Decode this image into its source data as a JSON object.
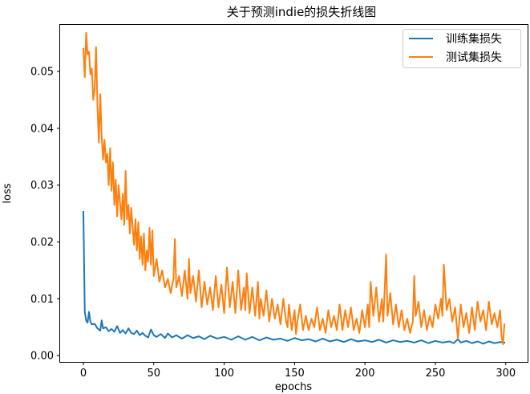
{
  "chart_data": {
    "type": "line",
    "title": "关于预测indie的损失折线图",
    "xlabel": "epochs",
    "ylabel": "loss",
    "xlim": [
      -16.5,
      315.5
    ],
    "ylim": [
      -0.0011,
      0.0582
    ],
    "xticks": [
      0,
      50,
      100,
      150,
      200,
      250,
      300
    ],
    "xtick_labels": [
      "0",
      "50",
      "100",
      "150",
      "200",
      "250",
      "300"
    ],
    "yticks": [
      0.0,
      0.01,
      0.02,
      0.03,
      0.04,
      0.05
    ],
    "ytick_labels": [
      "0.00",
      "0.01",
      "0.02",
      "0.03",
      "0.04",
      "0.05"
    ],
    "grid": false,
    "legend_position": "top-right",
    "series": [
      {
        "name": "训练集损失",
        "color": "#1f77b4",
        "points": [
          [
            0,
            0.0253
          ],
          [
            1,
            0.0077
          ],
          [
            2,
            0.0062
          ],
          [
            3,
            0.0058
          ],
          [
            4,
            0.0077
          ],
          [
            5,
            0.006
          ],
          [
            6,
            0.0055
          ],
          [
            8,
            0.0056
          ],
          [
            10,
            0.0048
          ],
          [
            12,
            0.0044
          ],
          [
            13,
            0.0062
          ],
          [
            14,
            0.0048
          ],
          [
            16,
            0.005
          ],
          [
            18,
            0.0043
          ],
          [
            20,
            0.0047
          ],
          [
            22,
            0.0042
          ],
          [
            24,
            0.0052
          ],
          [
            26,
            0.004
          ],
          [
            28,
            0.0045
          ],
          [
            30,
            0.0039
          ],
          [
            32,
            0.0048
          ],
          [
            34,
            0.004
          ],
          [
            36,
            0.0038
          ],
          [
            38,
            0.0044
          ],
          [
            40,
            0.0036
          ],
          [
            42,
            0.004
          ],
          [
            44,
            0.0035
          ],
          [
            46,
            0.0032
          ],
          [
            48,
            0.0046
          ],
          [
            50,
            0.0036
          ],
          [
            52,
            0.0033
          ],
          [
            55,
            0.0038
          ],
          [
            58,
            0.0031
          ],
          [
            60,
            0.0039
          ],
          [
            63,
            0.0032
          ],
          [
            66,
            0.0036
          ],
          [
            70,
            0.003
          ],
          [
            74,
            0.0036
          ],
          [
            78,
            0.0031
          ],
          [
            82,
            0.0034
          ],
          [
            86,
            0.0029
          ],
          [
            90,
            0.0035
          ],
          [
            95,
            0.003
          ],
          [
            100,
            0.0033
          ],
          [
            105,
            0.0028
          ],
          [
            110,
            0.0034
          ],
          [
            115,
            0.0028
          ],
          [
            120,
            0.0033
          ],
          [
            125,
            0.0027
          ],
          [
            130,
            0.0032
          ],
          [
            135,
            0.0028
          ],
          [
            140,
            0.003
          ],
          [
            145,
            0.0026
          ],
          [
            150,
            0.0031
          ],
          [
            155,
            0.0027
          ],
          [
            160,
            0.0029
          ],
          [
            165,
            0.0025
          ],
          [
            170,
            0.003
          ],
          [
            175,
            0.0025
          ],
          [
            180,
            0.0028
          ],
          [
            185,
            0.0024
          ],
          [
            190,
            0.0029
          ],
          [
            195,
            0.0025
          ],
          [
            200,
            0.0027
          ],
          [
            205,
            0.0024
          ],
          [
            210,
            0.0028
          ],
          [
            215,
            0.0023
          ],
          [
            220,
            0.0027
          ],
          [
            225,
            0.0024
          ],
          [
            230,
            0.0026
          ],
          [
            235,
            0.0023
          ],
          [
            240,
            0.0027
          ],
          [
            245,
            0.0022
          ],
          [
            250,
            0.0026
          ],
          [
            255,
            0.0023
          ],
          [
            260,
            0.0025
          ],
          [
            263,
            0.0022
          ],
          [
            266,
            0.0029
          ],
          [
            268,
            0.0023
          ],
          [
            272,
            0.0026
          ],
          [
            276,
            0.0022
          ],
          [
            280,
            0.0025
          ],
          [
            284,
            0.0021
          ],
          [
            288,
            0.0025
          ],
          [
            292,
            0.0022
          ],
          [
            296,
            0.0024
          ],
          [
            299,
            0.0023
          ]
        ]
      },
      {
        "name": "测试集损失",
        "color": "#ff7f0e",
        "points": [
          [
            0,
            0.054
          ],
          [
            1,
            0.049
          ],
          [
            2,
            0.0568
          ],
          [
            3,
            0.053
          ],
          [
            4,
            0.0535
          ],
          [
            5,
            0.0495
          ],
          [
            6,
            0.0505
          ],
          [
            7,
            0.045
          ],
          [
            8,
            0.0468
          ],
          [
            9,
            0.0543
          ],
          [
            10,
            0.044
          ],
          [
            11,
            0.0375
          ],
          [
            12,
            0.046
          ],
          [
            13,
            0.0385
          ],
          [
            14,
            0.0345
          ],
          [
            15,
            0.038
          ],
          [
            16,
            0.034
          ],
          [
            17,
            0.0355
          ],
          [
            18,
            0.03
          ],
          [
            19,
            0.0365
          ],
          [
            20,
            0.029
          ],
          [
            21,
            0.034
          ],
          [
            22,
            0.0265
          ],
          [
            23,
            0.031
          ],
          [
            24,
            0.0245
          ],
          [
            25,
            0.03
          ],
          [
            26,
            0.027
          ],
          [
            27,
            0.024
          ],
          [
            28,
            0.0285
          ],
          [
            29,
            0.023
          ],
          [
            30,
            0.0325
          ],
          [
            31,
            0.024
          ],
          [
            32,
            0.0265
          ],
          [
            33,
            0.0215
          ],
          [
            34,
            0.026
          ],
          [
            35,
            0.0225
          ],
          [
            36,
            0.0195
          ],
          [
            37,
            0.024
          ],
          [
            38,
            0.0185
          ],
          [
            39,
            0.0235
          ],
          [
            40,
            0.017
          ],
          [
            41,
            0.021
          ],
          [
            42,
            0.016
          ],
          [
            43,
            0.0215
          ],
          [
            44,
            0.015
          ],
          [
            45,
            0.0185
          ],
          [
            46,
            0.0165
          ],
          [
            47,
            0.0225
          ],
          [
            48,
            0.016
          ],
          [
            49,
            0.022
          ],
          [
            50,
            0.014
          ],
          [
            52,
            0.017
          ],
          [
            54,
            0.013
          ],
          [
            56,
            0.015
          ],
          [
            58,
            0.012
          ],
          [
            60,
            0.0135
          ],
          [
            62,
            0.011
          ],
          [
            64,
            0.0135
          ],
          [
            65,
            0.0205
          ],
          [
            66,
            0.012
          ],
          [
            68,
            0.014
          ],
          [
            70,
            0.0105
          ],
          [
            72,
            0.015
          ],
          [
            74,
            0.01
          ],
          [
            75,
            0.017
          ],
          [
            76,
            0.011
          ],
          [
            78,
            0.014
          ],
          [
            80,
            0.0095
          ],
          [
            82,
            0.015
          ],
          [
            84,
            0.0085
          ],
          [
            86,
            0.013
          ],
          [
            88,
            0.009
          ],
          [
            90,
            0.012
          ],
          [
            92,
            0.008
          ],
          [
            94,
            0.014
          ],
          [
            96,
            0.0085
          ],
          [
            98,
            0.0125
          ],
          [
            100,
            0.0075
          ],
          [
            102,
            0.0155
          ],
          [
            104,
            0.0085
          ],
          [
            106,
            0.013
          ],
          [
            108,
            0.0075
          ],
          [
            110,
            0.015
          ],
          [
            112,
            0.008
          ],
          [
            114,
            0.012
          ],
          [
            115,
            0.008
          ],
          [
            116,
            0.0145
          ],
          [
            118,
            0.0075
          ],
          [
            120,
            0.012
          ],
          [
            122,
            0.007
          ],
          [
            124,
            0.013
          ],
          [
            125,
            0.0065
          ],
          [
            126,
            0.01
          ],
          [
            128,
            0.007
          ],
          [
            130,
            0.0115
          ],
          [
            132,
            0.006
          ],
          [
            134,
            0.01
          ],
          [
            136,
            0.0065
          ],
          [
            138,
            0.009
          ],
          [
            140,
            0.0055
          ],
          [
            142,
            0.01
          ],
          [
            144,
            0.006
          ],
          [
            145,
            0.005
          ],
          [
            146,
            0.009
          ],
          [
            148,
            0.0045
          ],
          [
            150,
            0.008
          ],
          [
            151,
            0.0038
          ],
          [
            152,
            0.006
          ],
          [
            154,
            0.009
          ],
          [
            156,
            0.0045
          ],
          [
            158,
            0.007
          ],
          [
            160,
            0.0045
          ],
          [
            162,
            0.0065
          ],
          [
            164,
            0.005
          ],
          [
            166,
            0.0085
          ],
          [
            168,
            0.0045
          ],
          [
            170,
            0.0065
          ],
          [
            172,
            0.004
          ],
          [
            174,
            0.008
          ],
          [
            176,
            0.005
          ],
          [
            178,
            0.007
          ],
          [
            180,
            0.0045
          ],
          [
            182,
            0.009
          ],
          [
            184,
            0.0045
          ],
          [
            186,
            0.008
          ],
          [
            188,
            0.005
          ],
          [
            190,
            0.0085
          ],
          [
            192,
            0.0045
          ],
          [
            194,
            0.0065
          ],
          [
            196,
            0.004
          ],
          [
            198,
            0.008
          ],
          [
            200,
            0.005
          ],
          [
            202,
            0.009
          ],
          [
            203,
            0.005
          ],
          [
            204,
            0.013
          ],
          [
            206,
            0.007
          ],
          [
            208,
            0.012
          ],
          [
            210,
            0.006
          ],
          [
            212,
            0.01
          ],
          [
            213,
            0.006
          ],
          [
            214,
            0.0115
          ],
          [
            215,
            0.0178
          ],
          [
            216,
            0.007
          ],
          [
            218,
            0.011
          ],
          [
            220,
            0.0055
          ],
          [
            222,
            0.009
          ],
          [
            224,
            0.005
          ],
          [
            226,
            0.008
          ],
          [
            228,
            0.0045
          ],
          [
            230,
            0.0065
          ],
          [
            232,
            0.004
          ],
          [
            234,
            0.006
          ],
          [
            235,
            0.014
          ],
          [
            236,
            0.007
          ],
          [
            238,
            0.0095
          ],
          [
            240,
            0.005
          ],
          [
            242,
            0.008
          ],
          [
            244,
            0.0045
          ],
          [
            246,
            0.007
          ],
          [
            248,
            0.005
          ],
          [
            250,
            0.009
          ],
          [
            252,
            0.0065
          ],
          [
            254,
            0.01
          ],
          [
            255,
            0.007
          ],
          [
            256,
            0.016
          ],
          [
            258,
            0.008
          ],
          [
            260,
            0.01
          ],
          [
            262,
            0.006
          ],
          [
            264,
            0.0085
          ],
          [
            266,
            0.003
          ],
          [
            268,
            0.009
          ],
          [
            270,
            0.005
          ],
          [
            272,
            0.0075
          ],
          [
            274,
            0.004
          ],
          [
            276,
            0.0085
          ],
          [
            278,
            0.0045
          ],
          [
            280,
            0.0095
          ],
          [
            282,
            0.006
          ],
          [
            284,
            0.008
          ],
          [
            286,
            0.0045
          ],
          [
            288,
            0.0095
          ],
          [
            290,
            0.0055
          ],
          [
            292,
            0.0075
          ],
          [
            294,
            0.005
          ],
          [
            296,
            0.008
          ],
          [
            297,
            0.0035
          ],
          [
            298,
            0.002
          ],
          [
            299,
            0.0055
          ]
        ]
      }
    ]
  }
}
